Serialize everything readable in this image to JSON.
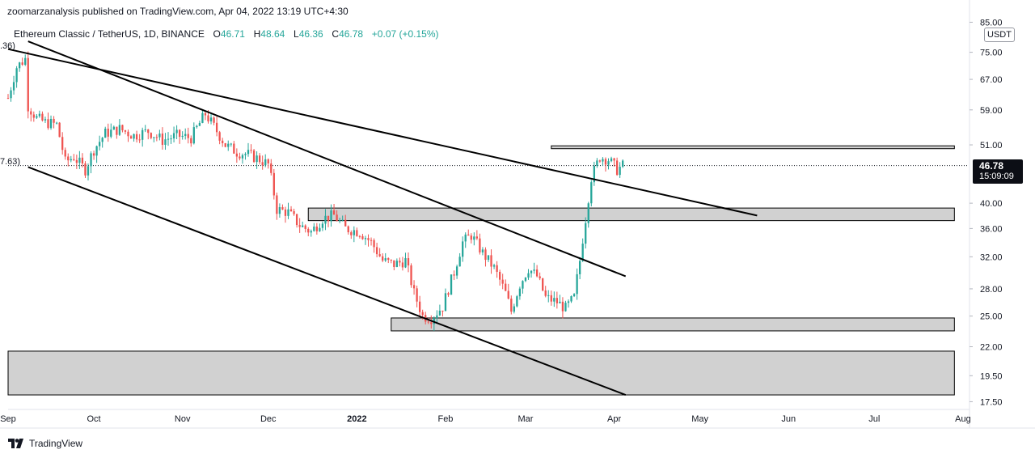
{
  "publisher": "zoomarzanalysis published on TradingView.com, Apr 04, 2022 13:19 UTC+4:30",
  "legend": {
    "symbol": "Ethereum Classic / TetherUS, 1D, BINANCE",
    "o_label": "O",
    "o": "46.71",
    "h_label": "H",
    "h": "48.64",
    "l_label": "L",
    "l": "46.36",
    "c_label": "C",
    "c": "46.78",
    "change": "+0.07 (+0.15%)"
  },
  "edge_labels": {
    "top": ".36)",
    "mid": "7.63)"
  },
  "unit": "USDT",
  "last_price": {
    "price": "46.78",
    "countdown": "15:09:09"
  },
  "footer": {
    "brand": "TradingView"
  },
  "colors": {
    "up": "#26a69a",
    "down": "#ef5350",
    "zone_fill": "#d1d1d1",
    "line": "#000000"
  },
  "chart_data": {
    "type": "candlestick",
    "symbol": "Ethereum Classic / TetherUS",
    "interval": "1D",
    "exchange": "BINANCE",
    "y_scale": "log",
    "ylim": [
      17,
      86
    ],
    "y_ticks": [
      "85.00",
      "75.00",
      "67.00",
      "59.00",
      "51.00",
      "40.00",
      "36.00",
      "32.00",
      "28.00",
      "25.00",
      "22.00",
      "19.50",
      "17.50"
    ],
    "x_range": [
      "2021-09-01",
      "2022-08-03"
    ],
    "x_ticks": [
      {
        "label": "Sep",
        "date": "2021-09-01",
        "bold": false
      },
      {
        "label": "Oct",
        "date": "2021-10-01",
        "bold": false
      },
      {
        "label": "Nov",
        "date": "2021-11-01",
        "bold": false
      },
      {
        "label": "Dec",
        "date": "2021-12-01",
        "bold": false
      },
      {
        "label": "2022",
        "date": "2022-01-01",
        "bold": true
      },
      {
        "label": "Feb",
        "date": "2022-02-01",
        "bold": false
      },
      {
        "label": "Mar",
        "date": "2022-03-01",
        "bold": false
      },
      {
        "label": "Apr",
        "date": "2022-04-01",
        "bold": false
      },
      {
        "label": "May",
        "date": "2022-05-01",
        "bold": false
      },
      {
        "label": "Jun",
        "date": "2022-06-01",
        "bold": false
      },
      {
        "label": "Jul",
        "date": "2022-07-01",
        "bold": false
      },
      {
        "label": "Aug",
        "date": "2022-08-01",
        "bold": false
      }
    ],
    "close_path": [
      [
        "2021-09-01",
        62.0
      ],
      [
        "2021-09-04",
        70.5
      ],
      [
        "2021-09-07",
        73.0
      ],
      [
        "2021-09-08",
        60.0
      ],
      [
        "2021-09-11",
        57.0
      ],
      [
        "2021-09-14",
        56.0
      ],
      [
        "2021-09-18",
        55.5
      ],
      [
        "2021-09-21",
        47.5
      ],
      [
        "2021-09-24",
        48.5
      ],
      [
        "2021-09-28",
        46.0
      ],
      [
        "2021-10-01",
        50.0
      ],
      [
        "2021-10-05",
        53.5
      ],
      [
        "2021-10-10",
        54.5
      ],
      [
        "2021-10-15",
        53.0
      ],
      [
        "2021-10-20",
        54.0
      ],
      [
        "2021-10-25",
        52.0
      ],
      [
        "2021-10-30",
        53.0
      ],
      [
        "2021-11-04",
        52.5
      ],
      [
        "2021-11-09",
        58.0
      ],
      [
        "2021-11-12",
        55.0
      ],
      [
        "2021-11-16",
        51.0
      ],
      [
        "2021-11-20",
        49.5
      ],
      [
        "2021-11-24",
        49.0
      ],
      [
        "2021-11-28",
        48.0
      ],
      [
        "2021-12-01",
        47.0
      ],
      [
        "2021-12-04",
        39.0
      ],
      [
        "2021-12-08",
        38.5
      ],
      [
        "2021-12-12",
        36.5
      ],
      [
        "2021-12-16",
        35.5
      ],
      [
        "2021-12-20",
        37.5
      ],
      [
        "2021-12-24",
        38.0
      ],
      [
        "2021-12-28",
        36.0
      ],
      [
        "2022-01-02",
        35.5
      ],
      [
        "2022-01-06",
        34.0
      ],
      [
        "2022-01-10",
        31.5
      ],
      [
        "2022-01-14",
        31.0
      ],
      [
        "2022-01-18",
        31.5
      ],
      [
        "2022-01-21",
        27.5
      ],
      [
        "2022-01-24",
        25.0
      ],
      [
        "2022-01-27",
        24.8
      ],
      [
        "2022-01-31",
        26.0
      ],
      [
        "2022-02-04",
        30.0
      ],
      [
        "2022-02-07",
        34.0
      ],
      [
        "2022-02-10",
        35.0
      ],
      [
        "2022-02-14",
        32.5
      ],
      [
        "2022-02-18",
        30.5
      ],
      [
        "2022-02-22",
        27.5
      ],
      [
        "2022-02-24",
        25.5
      ],
      [
        "2022-02-27",
        28.5
      ],
      [
        "2022-03-02",
        30.5
      ],
      [
        "2022-03-05",
        29.5
      ],
      [
        "2022-03-08",
        27.0
      ],
      [
        "2022-03-12",
        26.5
      ],
      [
        "2022-03-15",
        25.8
      ],
      [
        "2022-03-18",
        27.0
      ],
      [
        "2022-03-20",
        31.5
      ],
      [
        "2022-03-22",
        37.5
      ],
      [
        "2022-03-24",
        44.5
      ],
      [
        "2022-03-27",
        48.5
      ],
      [
        "2022-03-30",
        48.0
      ],
      [
        "2022-04-02",
        46.0
      ],
      [
        "2022-04-04",
        46.78
      ]
    ],
    "last_price_line": 46.78,
    "zones": [
      {
        "name": "resistance-zone",
        "from": "2022-03-10",
        "to": "2022-07-29",
        "low": 50.2,
        "high": 50.8
      },
      {
        "name": "mid-zone",
        "from": "2021-12-15",
        "to": "2022-07-29",
        "low": 37.2,
        "high": 39.2
      },
      {
        "name": "low-zone",
        "from": "2022-01-13",
        "to": "2022-07-29",
        "low": 23.5,
        "high": 24.8
      },
      {
        "name": "bottom-zone",
        "from": "2021-09-01",
        "to": "2022-07-29",
        "low": 18.0,
        "high": 21.6
      }
    ],
    "trendlines": [
      {
        "name": "long-descending-trendline",
        "from": [
          "2021-09-01",
          76.0
        ],
        "to": [
          "2022-05-21",
          38.0
        ]
      },
      {
        "name": "upper-channel-line",
        "from": [
          "2021-09-08",
          78.5
        ],
        "to": [
          "2022-04-05",
          29.5
        ]
      },
      {
        "name": "lower-channel-line",
        "from": [
          "2021-09-08",
          46.5
        ],
        "to": [
          "2022-04-05",
          18.0
        ]
      }
    ]
  }
}
